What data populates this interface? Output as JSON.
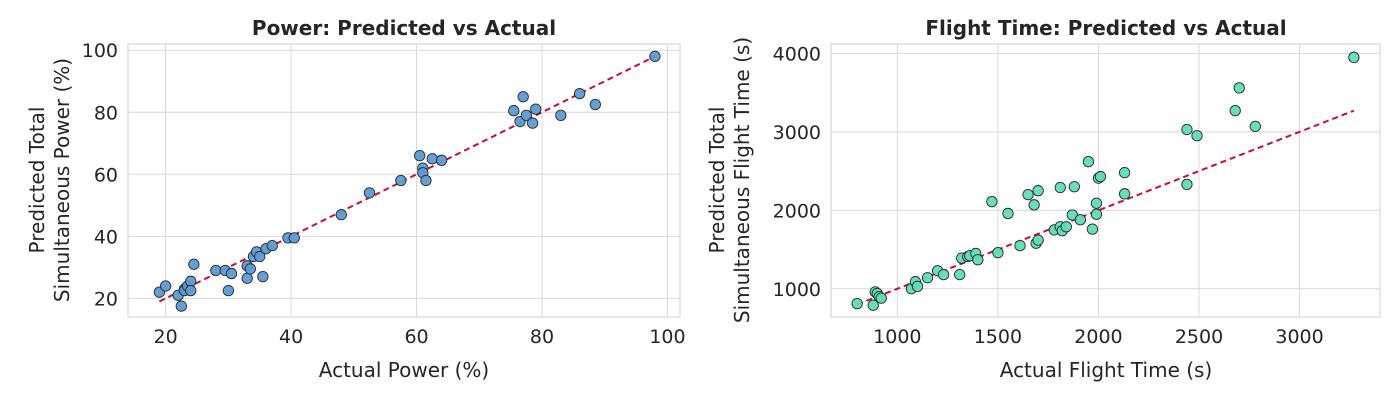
{
  "chart_data": [
    {
      "type": "scatter",
      "title": "Power: Predicted vs Actual",
      "xlabel": "Actual Power (%)",
      "ylabel_lines": [
        "Predicted Total",
        "Simultaneous Power (%)"
      ],
      "xlim": [
        14,
        102
      ],
      "ylim": [
        14,
        102
      ],
      "xticks": [
        20,
        40,
        60,
        80,
        100
      ],
      "yticks": [
        20,
        40,
        60,
        80,
        100
      ],
      "grid": true,
      "point_color": "#5b9bd5",
      "point_edge_color": "#2a2a2a",
      "line_color": "#c8102e",
      "reference_line": {
        "style": "dashed",
        "x": [
          19,
          98
        ],
        "y": [
          19,
          98
        ]
      },
      "points": [
        [
          19,
          22
        ],
        [
          20,
          24
        ],
        [
          22,
          21
        ],
        [
          22.5,
          17.5
        ],
        [
          23,
          23
        ],
        [
          23,
          22.5
        ],
        [
          23.5,
          24
        ],
        [
          24,
          25.5
        ],
        [
          24,
          22.5
        ],
        [
          24.5,
          31
        ],
        [
          28,
          29
        ],
        [
          29.5,
          29
        ],
        [
          30,
          22.5
        ],
        [
          30.5,
          28
        ],
        [
          33,
          26.5
        ],
        [
          33,
          30.5
        ],
        [
          33.5,
          29.5
        ],
        [
          34,
          33.5
        ],
        [
          34.5,
          35
        ],
        [
          35,
          33.5
        ],
        [
          35.5,
          27
        ],
        [
          36,
          36
        ],
        [
          37,
          37
        ],
        [
          39.5,
          39.5
        ],
        [
          40.5,
          39.5
        ],
        [
          48,
          47
        ],
        [
          52.5,
          54
        ],
        [
          57.5,
          58
        ],
        [
          60.5,
          66
        ],
        [
          61,
          62
        ],
        [
          61,
          60.5
        ],
        [
          61.5,
          58
        ],
        [
          62.5,
          65
        ],
        [
          64,
          64.5
        ],
        [
          75.5,
          80.5
        ],
        [
          76.5,
          77
        ],
        [
          77,
          85
        ],
        [
          77.5,
          79
        ],
        [
          78.5,
          76.5
        ],
        [
          79,
          81
        ],
        [
          83,
          79
        ],
        [
          86,
          86
        ],
        [
          88.5,
          82.5
        ],
        [
          98,
          98
        ]
      ]
    },
    {
      "type": "scatter",
      "title": "Flight Time: Predicted vs Actual",
      "xlabel": "Actual Flight Time (s)",
      "ylabel_lines": [
        "Predicted Total",
        "Simultaneous Flight Time (s)"
      ],
      "xlim": [
        670,
        3400
      ],
      "ylim": [
        640,
        4120
      ],
      "xticks": [
        1000,
        1500,
        2000,
        2500,
        3000
      ],
      "yticks": [
        1000,
        2000,
        3000,
        4000
      ],
      "grid": true,
      "point_color": "#5fdcb8",
      "point_edge_color": "#2a2a2a",
      "line_color": "#c8102e",
      "reference_line": {
        "style": "dashed",
        "x": [
          800,
          3270
        ],
        "y": [
          800,
          3270
        ]
      },
      "points": [
        [
          800,
          810
        ],
        [
          880,
          790
        ],
        [
          890,
          960
        ],
        [
          900,
          940
        ],
        [
          910,
          900
        ],
        [
          920,
          880
        ],
        [
          1070,
          1000
        ],
        [
          1090,
          1090
        ],
        [
          1100,
          1030
        ],
        [
          1150,
          1140
        ],
        [
          1200,
          1230
        ],
        [
          1230,
          1180
        ],
        [
          1310,
          1180
        ],
        [
          1320,
          1390
        ],
        [
          1350,
          1410
        ],
        [
          1360,
          1420
        ],
        [
          1390,
          1450
        ],
        [
          1400,
          1370
        ],
        [
          1470,
          2110
        ],
        [
          1500,
          1460
        ],
        [
          1550,
          1960
        ],
        [
          1610,
          1550
        ],
        [
          1650,
          2200
        ],
        [
          1680,
          2070
        ],
        [
          1690,
          1580
        ],
        [
          1700,
          1620
        ],
        [
          1700,
          2250
        ],
        [
          1780,
          1750
        ],
        [
          1810,
          2290
        ],
        [
          1810,
          1790
        ],
        [
          1820,
          1740
        ],
        [
          1840,
          1790
        ],
        [
          1870,
          1940
        ],
        [
          1880,
          2300
        ],
        [
          1910,
          1880
        ],
        [
          1950,
          2620
        ],
        [
          1970,
          1760
        ],
        [
          1990,
          2090
        ],
        [
          1990,
          1950
        ],
        [
          2000,
          2410
        ],
        [
          2010,
          2430
        ],
        [
          2130,
          2210
        ],
        [
          2130,
          2480
        ],
        [
          2440,
          3030
        ],
        [
          2440,
          2330
        ],
        [
          2490,
          2950
        ],
        [
          2680,
          3270
        ],
        [
          2700,
          3560
        ],
        [
          2780,
          3070
        ],
        [
          3270,
          3950
        ]
      ]
    }
  ]
}
